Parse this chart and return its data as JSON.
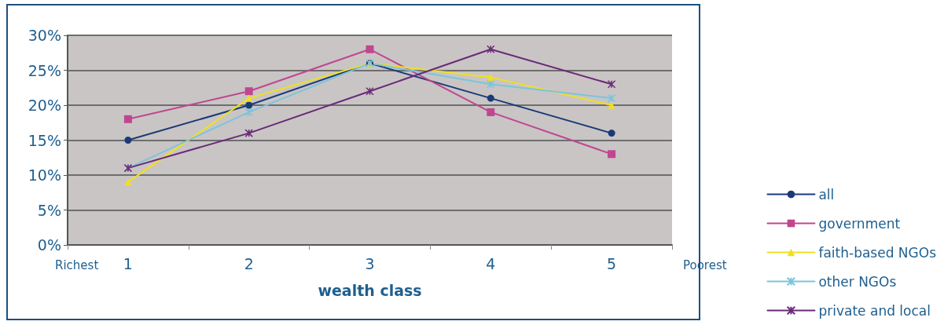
{
  "chart_data": {
    "type": "line",
    "xlabel": "wealth class",
    "categories": [
      "1",
      "2",
      "3",
      "4",
      "5"
    ],
    "series": [
      {
        "name": "all",
        "color": "#1a3a78",
        "marker": "circle",
        "values": [
          15,
          20,
          26,
          21,
          16
        ]
      },
      {
        "name": "government",
        "color": "#c0468f",
        "marker": "square",
        "values": [
          18,
          22,
          28,
          19,
          13
        ]
      },
      {
        "name": "faith-based NGOs",
        "color": "#f0e020",
        "marker": "triangle",
        "values": [
          9,
          21,
          26,
          24,
          20
        ]
      },
      {
        "name": "other NGOs",
        "color": "#7cc4dc",
        "marker": "cross",
        "values": [
          11,
          19,
          26,
          23,
          21
        ]
      },
      {
        "name": "private and local",
        "color": "#6a2a78",
        "marker": "cross",
        "values": [
          11,
          16,
          22,
          28,
          23
        ]
      }
    ],
    "ylim": [
      0,
      30
    ],
    "yticks": [
      {
        "value": 0,
        "label": "0%"
      },
      {
        "value": 5,
        "label": "5%"
      },
      {
        "value": 10,
        "label": "10%"
      },
      {
        "value": 15,
        "label": "15%"
      },
      {
        "value": 20,
        "label": "20%"
      },
      {
        "value": 25,
        "label": "25%"
      },
      {
        "value": 30,
        "label": "30%"
      }
    ],
    "grid": "y",
    "legend": "bottom right",
    "line_style": "solid",
    "annotations": [
      "Richest",
      "Poorest"
    ]
  }
}
